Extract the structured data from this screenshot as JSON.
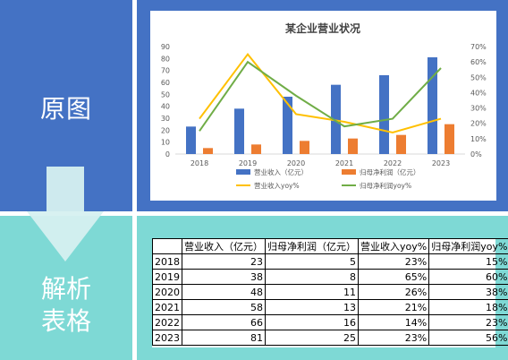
{
  "side_labels": {
    "original": "原图",
    "parse_line1": "解析",
    "parse_line2": "表格"
  },
  "colors": {
    "top_panel": "#4472C4",
    "bottom_panel": "#7ED9D5",
    "bar_revenue": "#4472C4",
    "bar_profit": "#ED7D31",
    "line_revenue_yoy": "#FFC000",
    "line_profit_yoy": "#70AD47"
  },
  "chart_data": {
    "type": "bar",
    "title": "某企业营业状况",
    "categories": [
      "2018",
      "2019",
      "2020",
      "2021",
      "2022",
      "2023"
    ],
    "y_left": {
      "min": 0,
      "max": 90,
      "step": 10,
      "ticks": [
        "0",
        "10",
        "20",
        "30",
        "40",
        "50",
        "60",
        "70",
        "80",
        "90"
      ]
    },
    "y_right": {
      "min": 0,
      "max": 70,
      "step": 10,
      "ticks": [
        "0%",
        "10%",
        "20%",
        "30%",
        "40%",
        "50%",
        "60%",
        "70%"
      ]
    },
    "series": [
      {
        "name": "营业收入（亿元）",
        "kind": "bar",
        "axis": "left",
        "color": "#4472C4",
        "values": [
          23,
          38,
          48,
          58,
          66,
          81
        ]
      },
      {
        "name": "归母净利润（亿元）",
        "kind": "bar",
        "axis": "left",
        "color": "#ED7D31",
        "values": [
          5,
          8,
          11,
          13,
          16,
          25
        ]
      },
      {
        "name": "营业收入yoy%",
        "kind": "line",
        "axis": "right",
        "color": "#FFC000",
        "values": [
          23,
          65,
          26,
          21,
          14,
          23
        ]
      },
      {
        "name": "归母净利润yoy%",
        "kind": "line",
        "axis": "right",
        "color": "#70AD47",
        "values": [
          15,
          60,
          38,
          18,
          23,
          56
        ]
      }
    ],
    "legend_position": "bottom",
    "grid": false
  },
  "table": {
    "headers": [
      "",
      "营业收入（亿元）",
      "归母净利润（亿元）",
      "营业收入yoy%",
      "归母净利润yoy%"
    ],
    "rows": [
      [
        "2018",
        "23",
        "5",
        "23%",
        "15%"
      ],
      [
        "2019",
        "38",
        "8",
        "65%",
        "60%"
      ],
      [
        "2020",
        "48",
        "11",
        "26%",
        "38%"
      ],
      [
        "2021",
        "58",
        "13",
        "21%",
        "18%"
      ],
      [
        "2022",
        "66",
        "16",
        "14%",
        "23%"
      ],
      [
        "2023",
        "81",
        "25",
        "23%",
        "56%"
      ]
    ]
  }
}
